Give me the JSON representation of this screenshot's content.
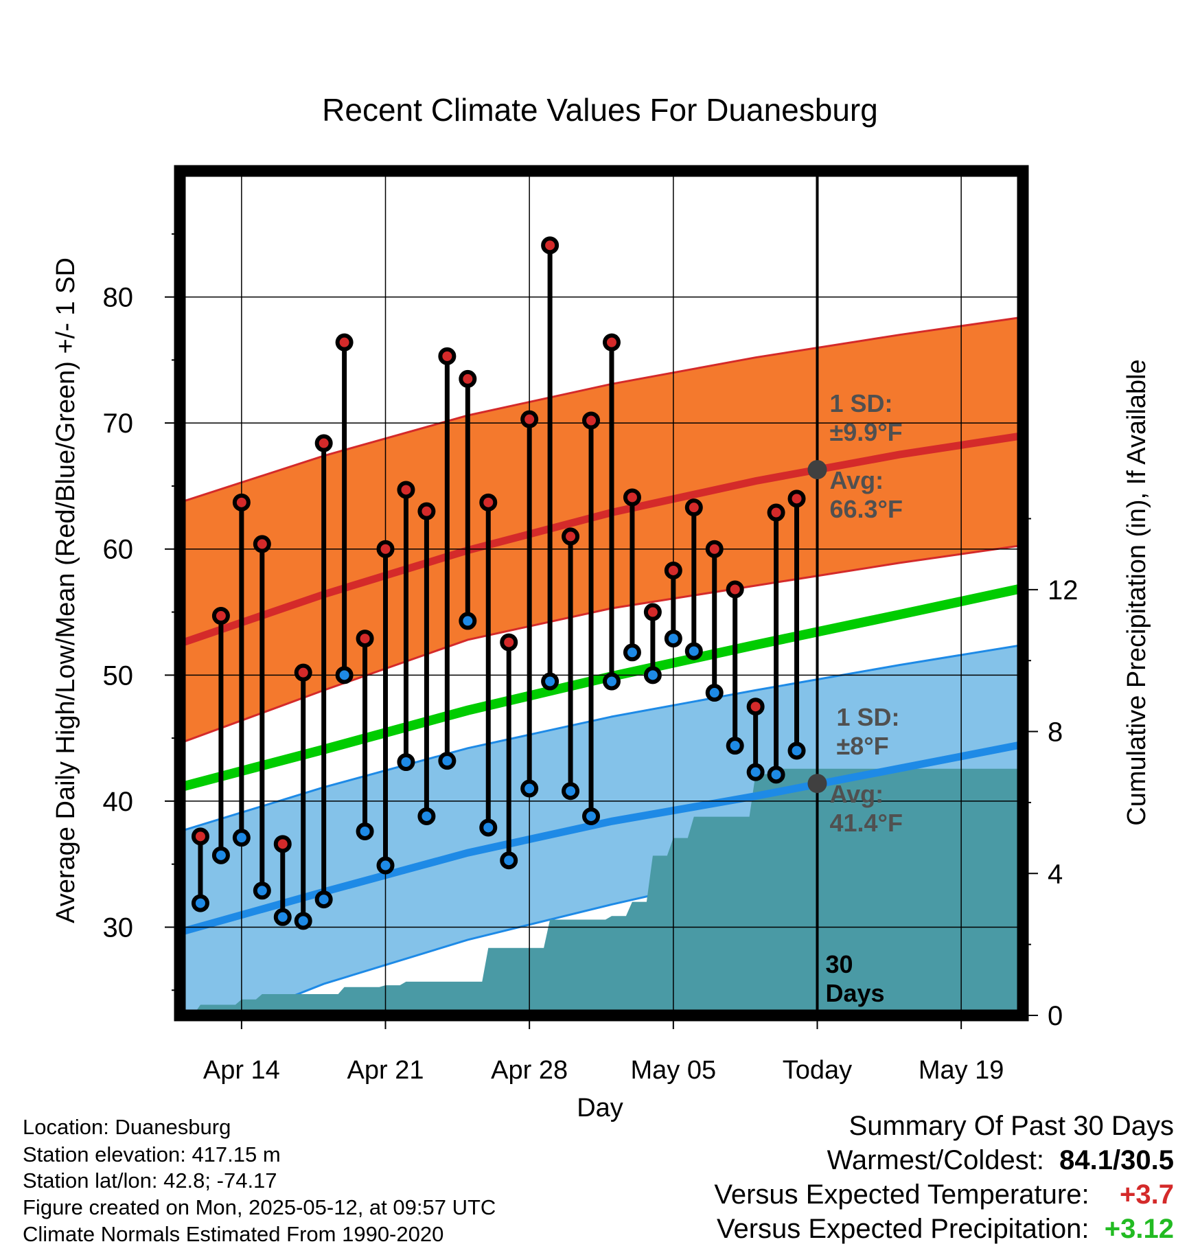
{
  "colors": {
    "high": "#d42a2a",
    "low": "#1e8ae6",
    "mean_line": "#00cc00",
    "high_band": "#f4792d",
    "low_band": "#84c2e9",
    "precip": "#4a9aa5",
    "today_marker": "#404040",
    "note": "#505050",
    "positive_temp": "#d42a2a",
    "positive_precip": "#22bb22"
  },
  "chart_data": {
    "type": "line",
    "title": "Recent Climate Values For Duanesburg",
    "xlabel": "Day",
    "ylabel": "Average Daily High/Low/Mean (Red/Blue/Green) +/- 1 SD",
    "y2label": "Cumulative Precipitation (in), If Available",
    "xlim": [
      "2025-04-11",
      "2025-05-22"
    ],
    "ylim": [
      23,
      90
    ],
    "y2lim": [
      0,
      23.8
    ],
    "x_ticks": [
      "2025-04-14",
      "2025-04-21",
      "2025-04-28",
      "2025-05-05",
      "2025-05-12",
      "2025-05-19"
    ],
    "x_tick_labels": [
      "Apr 14",
      "Apr 21",
      "Apr 28",
      "May 05",
      "Today",
      "May 19"
    ],
    "y_ticks": [
      30,
      40,
      50,
      60,
      70,
      80
    ],
    "y2_ticks": [
      0,
      4,
      8,
      12
    ],
    "grid": true,
    "normals": {
      "x": [
        "2025-04-11",
        "2025-04-18",
        "2025-04-25",
        "2025-05-02",
        "2025-05-09",
        "2025-05-16",
        "2025-05-22"
      ],
      "avg_high": [
        52.5,
        56.4,
        59.9,
        62.9,
        65.4,
        67.5,
        69.0
      ],
      "high_sd_upper": [
        63.7,
        67.4,
        70.6,
        73.1,
        75.2,
        77.0,
        78.4
      ],
      "high_sd_lower": [
        44.6,
        48.8,
        52.8,
        55.3,
        57.1,
        58.9,
        60.3
      ],
      "avg_mean": [
        41.1,
        44.1,
        47.2,
        49.9,
        52.4,
        54.8,
        56.9
      ],
      "avg_low": [
        29.6,
        32.8,
        35.9,
        38.4,
        40.4,
        42.6,
        44.5
      ],
      "low_sd_upper": [
        37.6,
        41.1,
        44.2,
        46.7,
        48.8,
        50.8,
        52.4
      ],
      "low_sd_lower": [
        21.0,
        25.5,
        29.0,
        31.8,
        34.4,
        37.0,
        39.4
      ]
    },
    "observed": {
      "dates": [
        "2025-04-12",
        "2025-04-13",
        "2025-04-14",
        "2025-04-15",
        "2025-04-16",
        "2025-04-17",
        "2025-04-18",
        "2025-04-19",
        "2025-04-20",
        "2025-04-21",
        "2025-04-22",
        "2025-04-23",
        "2025-04-24",
        "2025-04-25",
        "2025-04-26",
        "2025-04-27",
        "2025-04-28",
        "2025-04-29",
        "2025-04-30",
        "2025-05-01",
        "2025-05-02",
        "2025-05-03",
        "2025-05-04",
        "2025-05-05",
        "2025-05-06",
        "2025-05-07",
        "2025-05-08",
        "2025-05-09",
        "2025-05-10",
        "2025-05-11"
      ],
      "highs": [
        37.2,
        54.7,
        63.7,
        60.4,
        36.6,
        50.2,
        68.4,
        76.4,
        52.9,
        60.0,
        64.7,
        63.0,
        75.3,
        73.5,
        63.7,
        52.6,
        70.3,
        84.1,
        61.0,
        70.2,
        76.4,
        64.1,
        55.0,
        58.3,
        63.3,
        60.0,
        56.8,
        47.5,
        62.9,
        64.0
      ],
      "lows": [
        31.9,
        35.7,
        37.1,
        32.9,
        30.8,
        30.5,
        32.2,
        50.0,
        37.6,
        34.9,
        43.1,
        38.8,
        43.2,
        54.3,
        37.9,
        35.3,
        41.0,
        49.5,
        40.8,
        38.8,
        49.5,
        51.8,
        50.0,
        52.9,
        51.9,
        48.6,
        44.4,
        42.3,
        42.1,
        44.0
      ]
    },
    "precipitation": {
      "dates": [
        "2025-04-11",
        "2025-04-12",
        "2025-04-13",
        "2025-04-14",
        "2025-04-15",
        "2025-04-16",
        "2025-04-17",
        "2025-04-18",
        "2025-04-19",
        "2025-04-20",
        "2025-04-21",
        "2025-04-22",
        "2025-04-23",
        "2025-04-24",
        "2025-04-25",
        "2025-04-26",
        "2025-04-27",
        "2025-04-28",
        "2025-04-29",
        "2025-04-30",
        "2025-05-01",
        "2025-05-02",
        "2025-05-03",
        "2025-05-04",
        "2025-05-05",
        "2025-05-06",
        "2025-05-07",
        "2025-05-08",
        "2025-05-09",
        "2025-05-10",
        "2025-05-11",
        "2025-05-12",
        "2025-05-22"
      ],
      "cumulative": [
        0.05,
        0.3,
        0.3,
        0.45,
        0.6,
        0.6,
        0.6,
        0.6,
        0.8,
        0.8,
        0.85,
        0.95,
        0.95,
        0.95,
        0.95,
        1.9,
        1.9,
        1.9,
        2.7,
        2.7,
        2.7,
        2.8,
        3.2,
        4.5,
        5.0,
        5.6,
        5.6,
        5.6,
        6.8,
        6.95,
        6.95,
        6.95,
        6.95
      ]
    },
    "today": "2025-05-12",
    "today_label": "Today",
    "today_avg_high": 66.3,
    "today_avg_low": 41.4,
    "annotations": {
      "high_sd_line1": "1 SD:",
      "high_sd_line2": "±9.9°F",
      "high_avg_line1": "Avg:",
      "high_avg_line2": "66.3°F",
      "low_sd_line1": "1 SD:",
      "low_sd_line2": "±8°F",
      "low_avg_line1": "Avg:",
      "low_avg_line2": "41.4°F",
      "days_line1": "30",
      "days_line2": "Days"
    }
  },
  "metadata": {
    "location": "Location: Duanesburg",
    "elevation": "Station elevation: 417.15 m",
    "latlon": "Station lat/lon: 42.8; -74.17",
    "created": "Figure created on Mon, 2025-05-12, at 09:57 UTC",
    "normals": "Climate Normals Estimated From 1990-2020"
  },
  "summary": {
    "title": "Summary Of Past 30 Days",
    "warmest_coldest_label": "Warmest/Coldest:",
    "warmest_coldest_value": "84.1/30.5",
    "temp_label": "Versus Expected Temperature:",
    "temp_value": "+3.7",
    "precip_label": "Versus Expected Precipitation:",
    "precip_value": "+3.12"
  }
}
